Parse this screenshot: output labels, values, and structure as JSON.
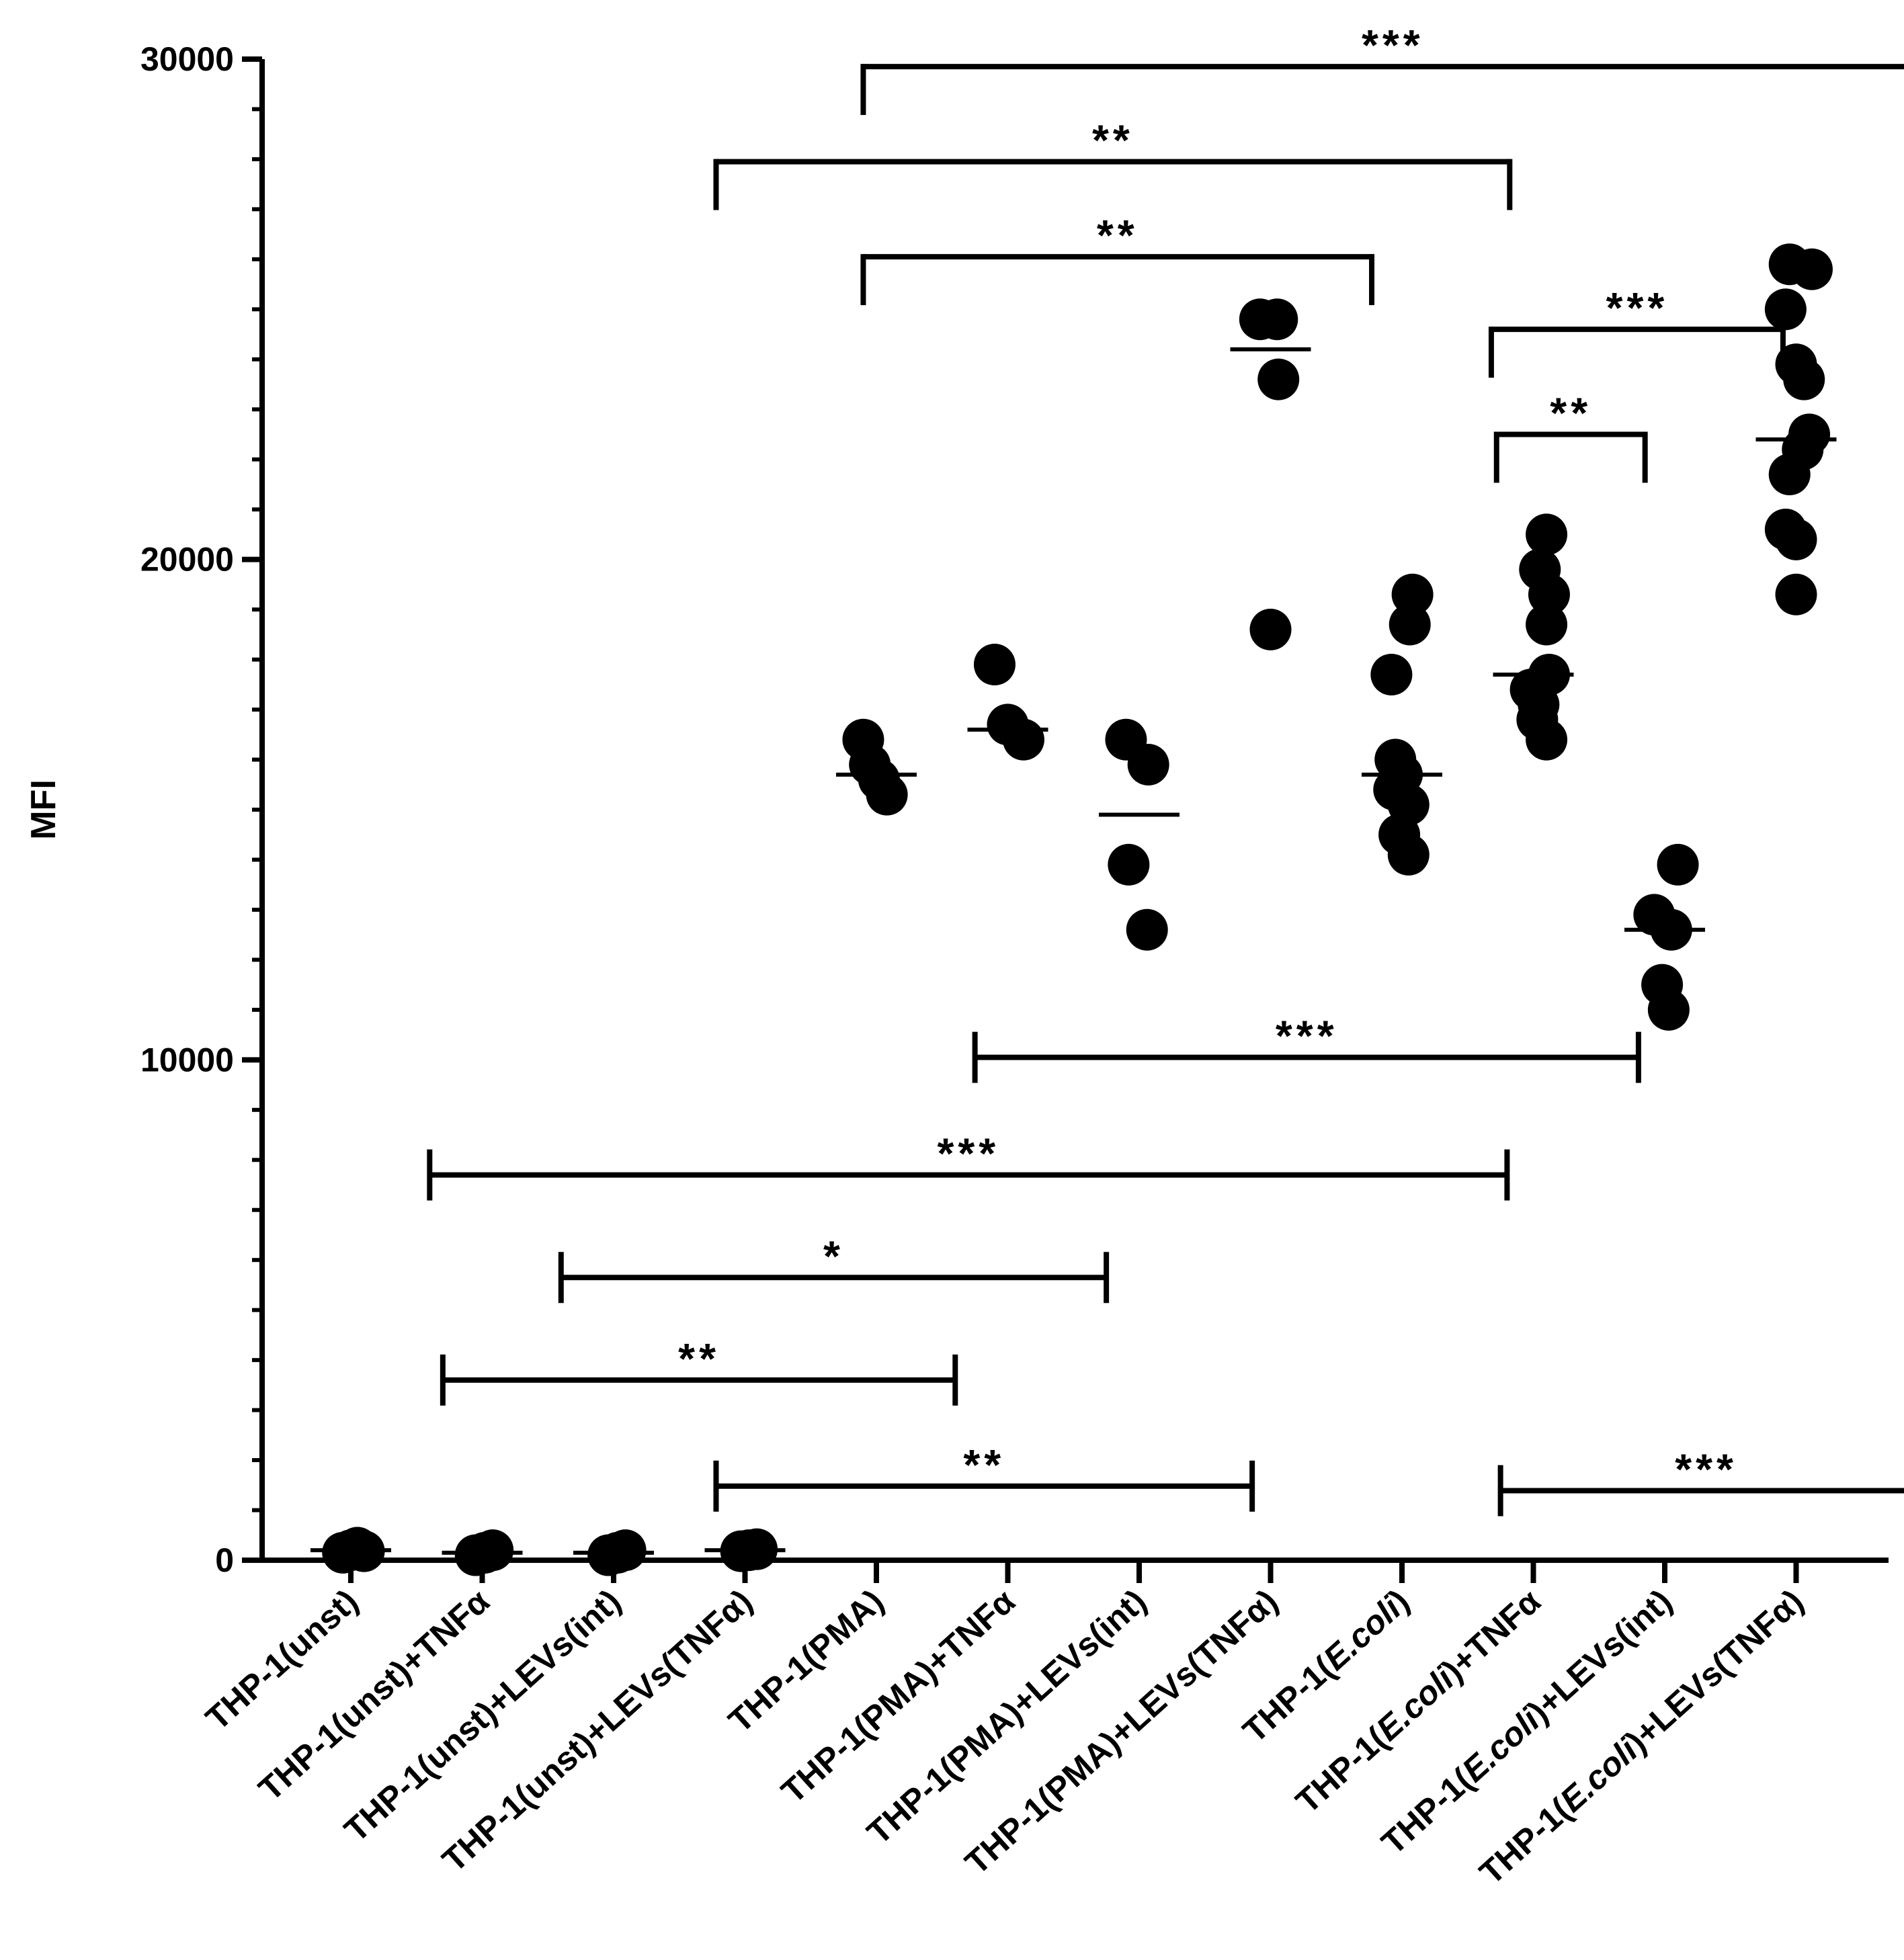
{
  "chart_data": {
    "type": "scatter",
    "ylabel": "MFI",
    "xlabel": "",
    "ylim": [
      0,
      30000
    ],
    "yticks": [
      0,
      10000,
      20000,
      30000
    ],
    "categories": [
      {
        "parts": [
          {
            "t": "THP-1(unst)",
            "i": false
          }
        ]
      },
      {
        "parts": [
          {
            "t": "THP-1(unst)+TNFα",
            "i": false
          }
        ]
      },
      {
        "parts": [
          {
            "t": "THP-1(unst)+LEVs(int)",
            "i": false
          }
        ]
      },
      {
        "parts": [
          {
            "t": "THP-1(unst)+LEVs(TNFα)",
            "i": false
          }
        ]
      },
      {
        "parts": [
          {
            "t": "THP-1(PMA)",
            "i": false
          }
        ]
      },
      {
        "parts": [
          {
            "t": "THP-1(PMA)+TNFα",
            "i": false
          }
        ]
      },
      {
        "parts": [
          {
            "t": "THP-1(PMA)+LEVs(int)",
            "i": false
          }
        ]
      },
      {
        "parts": [
          {
            "t": "THP-1(PMA)+LEVs(TNFα)",
            "i": false
          }
        ]
      },
      {
        "parts": [
          {
            "t": "THP-1(",
            "i": false
          },
          {
            "t": "E.coli",
            "i": true
          },
          {
            "t": ")",
            "i": false
          }
        ]
      },
      {
        "parts": [
          {
            "t": "THP-1(",
            "i": false
          },
          {
            "t": "E.coli",
            "i": true
          },
          {
            "t": ")+TNFα",
            "i": false
          }
        ]
      },
      {
        "parts": [
          {
            "t": "THP-1(",
            "i": false
          },
          {
            "t": "E.coli",
            "i": true
          },
          {
            "t": ")+LEVs(int)",
            "i": false
          }
        ]
      },
      {
        "parts": [
          {
            "t": "THP-1(",
            "i": false
          },
          {
            "t": "E.coli",
            "i": true
          },
          {
            "t": ")+LEVs(TNFα)",
            "i": false
          }
        ]
      }
    ],
    "series": [
      {
        "name": "THP-1(unst)",
        "mean": 200,
        "points": [
          {
            "y": 150,
            "dx": -0.06
          },
          {
            "y": 200,
            "dx": 0.0
          },
          {
            "y": 250,
            "dx": 0.05
          },
          {
            "y": 180,
            "dx": 0.1
          }
        ]
      },
      {
        "name": "THP-1(unst)+TNFα",
        "mean": 150,
        "points": [
          {
            "y": 100,
            "dx": -0.05
          },
          {
            "y": 150,
            "dx": 0.02
          },
          {
            "y": 200,
            "dx": 0.08
          }
        ]
      },
      {
        "name": "THP-1(unst)+LEVs(int)",
        "mean": 150,
        "points": [
          {
            "y": 100,
            "dx": -0.04
          },
          {
            "y": 150,
            "dx": 0.03
          },
          {
            "y": 200,
            "dx": 0.09
          }
        ]
      },
      {
        "name": "THP-1(unst)+LEVs(TNFα)",
        "mean": 200,
        "points": [
          {
            "y": 180,
            "dx": -0.03
          },
          {
            "y": 200,
            "dx": 0.03
          },
          {
            "y": 220,
            "dx": 0.09
          }
        ]
      },
      {
        "name": "THP-1(PMA)",
        "mean": 15700,
        "points": [
          {
            "y": 16400,
            "dx": -0.1
          },
          {
            "y": 15900,
            "dx": -0.05
          },
          {
            "y": 15600,
            "dx": 0.02
          },
          {
            "y": 15300,
            "dx": 0.08
          }
        ]
      },
      {
        "name": "THP-1(PMA)+TNFα",
        "mean": 16600,
        "points": [
          {
            "y": 17900,
            "dx": -0.1
          },
          {
            "y": 16700,
            "dx": 0.0
          },
          {
            "y": 16400,
            "dx": 0.12
          }
        ]
      },
      {
        "name": "THP-1(PMA)+LEVs(int)",
        "mean": 14900,
        "points": [
          {
            "y": 16400,
            "dx": -0.1
          },
          {
            "y": 15900,
            "dx": 0.07
          },
          {
            "y": 13900,
            "dx": -0.08
          },
          {
            "y": 12600,
            "dx": 0.06
          }
        ]
      },
      {
        "name": "THP-1(PMA)+LEVs(TNFα)",
        "mean": 24200,
        "points": [
          {
            "y": 24800,
            "dx": -0.08
          },
          {
            "y": 24800,
            "dx": 0.05
          },
          {
            "y": 23600,
            "dx": 0.06
          },
          {
            "y": 18600,
            "dx": 0.0
          }
        ]
      },
      {
        "name": "THP-1(E.coli)",
        "mean": 15700,
        "points": [
          {
            "y": 19300,
            "dx": 0.08
          },
          {
            "y": 18700,
            "dx": 0.06
          },
          {
            "y": 17700,
            "dx": -0.08
          },
          {
            "y": 16000,
            "dx": -0.05
          },
          {
            "y": 15700,
            "dx": 0.0
          },
          {
            "y": 15400,
            "dx": -0.06
          },
          {
            "y": 15100,
            "dx": 0.05
          },
          {
            "y": 14500,
            "dx": -0.02
          },
          {
            "y": 14100,
            "dx": 0.05
          }
        ]
      },
      {
        "name": "THP-1(E.coli)+TNFα",
        "mean": 17700,
        "points": [
          {
            "y": 20500,
            "dx": 0.1
          },
          {
            "y": 19800,
            "dx": 0.05
          },
          {
            "y": 19300,
            "dx": 0.12
          },
          {
            "y": 18700,
            "dx": 0.1
          },
          {
            "y": 17700,
            "dx": 0.12
          },
          {
            "y": 17400,
            "dx": -0.02
          },
          {
            "y": 17100,
            "dx": 0.04
          },
          {
            "y": 16800,
            "dx": 0.03
          },
          {
            "y": 16400,
            "dx": 0.1
          }
        ]
      },
      {
        "name": "THP-1(E.coli)+LEVs(int)",
        "mean": 12600,
        "points": [
          {
            "y": 13900,
            "dx": 0.1
          },
          {
            "y": 12900,
            "dx": -0.08
          },
          {
            "y": 12600,
            "dx": 0.05
          },
          {
            "y": 11500,
            "dx": -0.02
          },
          {
            "y": 11000,
            "dx": 0.03
          }
        ]
      },
      {
        "name": "THP-1(E.coli)+LEVs(TNFα)",
        "mean": 22400,
        "points": [
          {
            "y": 25900,
            "dx": -0.05
          },
          {
            "y": 25800,
            "dx": 0.12
          },
          {
            "y": 25000,
            "dx": -0.08
          },
          {
            "y": 23900,
            "dx": 0.0
          },
          {
            "y": 23600,
            "dx": 0.06
          },
          {
            "y": 22500,
            "dx": 0.1
          },
          {
            "y": 22200,
            "dx": 0.05
          },
          {
            "y": 21700,
            "dx": -0.05
          },
          {
            "y": 20600,
            "dx": -0.08
          },
          {
            "y": 20400,
            "dx": 0.0
          },
          {
            "y": 19300,
            "dx": 0.0
          }
        ]
      }
    ],
    "brackets_down": [
      {
        "label": "***",
        "from": 3.9,
        "to": 11.96,
        "y": 29850
      },
      {
        "label": "**",
        "from": 2.78,
        "to": 8.82,
        "y": 27950
      },
      {
        "label": "**",
        "from": 3.9,
        "to": 7.77,
        "y": 26050
      },
      {
        "label": "***",
        "from": 8.68,
        "to": 10.9,
        "y": 24600
      },
      {
        "label": "**",
        "from": 8.72,
        "to": 9.85,
        "y": 22500
      }
    ],
    "brackets_up": [
      {
        "label": "***",
        "from": 4.75,
        "to": 9.8,
        "y": 10050
      },
      {
        "label": "***",
        "from": 0.6,
        "to": 8.8,
        "y": 7700
      },
      {
        "label": "*",
        "from": 1.6,
        "to": 5.75,
        "y": 5650
      },
      {
        "label": "**",
        "from": 0.7,
        "to": 4.6,
        "y": 3600
      },
      {
        "label": "**",
        "from": 2.78,
        "to": 6.86,
        "y": 1480
      },
      {
        "label": "***",
        "from": 8.75,
        "to": 11.88,
        "y": 1390
      }
    ]
  }
}
